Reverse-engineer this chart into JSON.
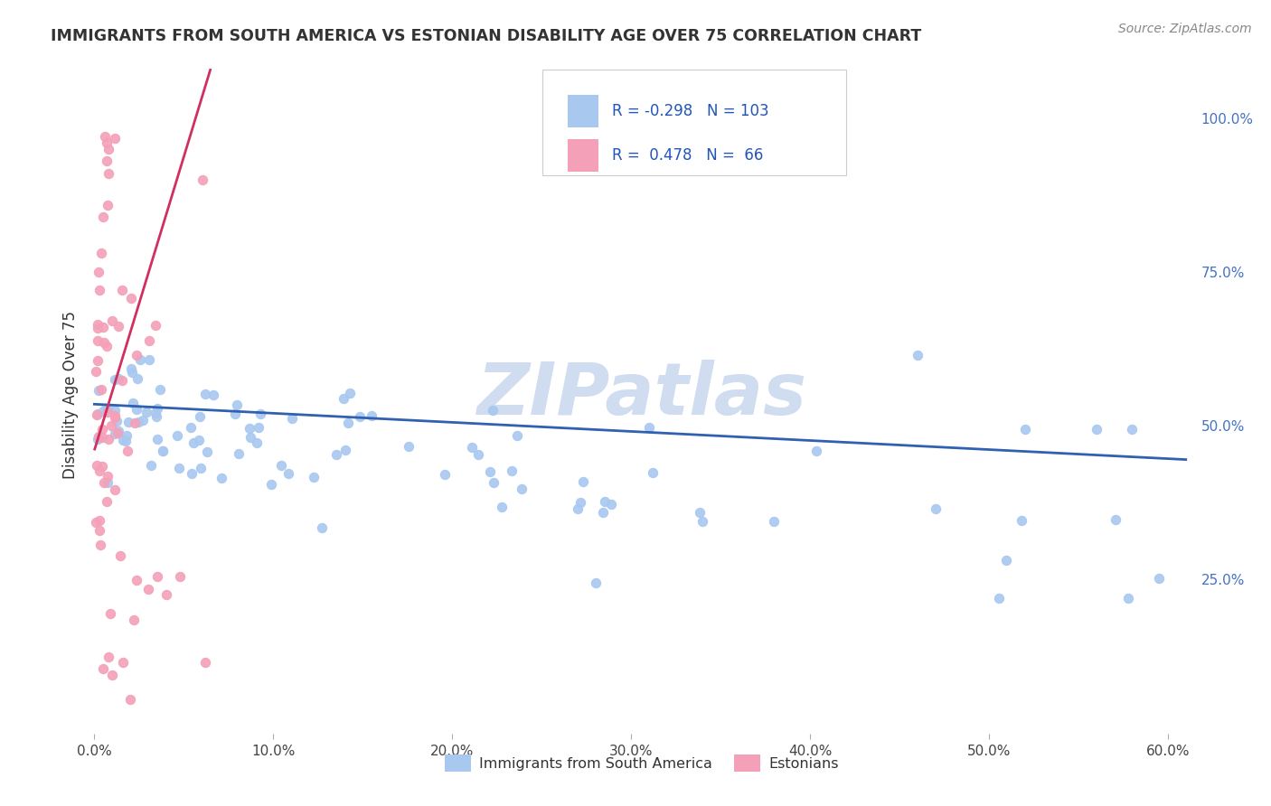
{
  "title": "IMMIGRANTS FROM SOUTH AMERICA VS ESTONIAN DISABILITY AGE OVER 75 CORRELATION CHART",
  "source": "Source: ZipAtlas.com",
  "ylabel": "Disability Age Over 75",
  "r_blue": -0.298,
  "n_blue": 103,
  "r_pink": 0.478,
  "n_pink": 66,
  "xlim": [
    -0.003,
    0.615
  ],
  "ylim": [
    0.0,
    1.1
  ],
  "xtick_vals": [
    0.0,
    0.1,
    0.2,
    0.3,
    0.4,
    0.5,
    0.6
  ],
  "xtick_labels": [
    "0.0%",
    "10.0%",
    "20.0%",
    "30.0%",
    "40.0%",
    "50.0%",
    "60.0%"
  ],
  "ytick_right_vals": [
    0.25,
    0.5,
    0.75,
    1.0
  ],
  "ytick_right_labels": [
    "25.0%",
    "50.0%",
    "75.0%",
    "100.0%"
  ],
  "blue_color": "#A8C8F0",
  "pink_color": "#F4A0B8",
  "blue_line_color": "#3060B0",
  "pink_line_color": "#D03060",
  "watermark_color": "#D0DCF0",
  "background_color": "#FFFFFF",
  "grid_color": "#C8C8C8",
  "blue_trend_x0": 0.0,
  "blue_trend_x1": 0.61,
  "blue_trend_y0": 0.535,
  "blue_trend_y1": 0.445,
  "pink_trend_x0": 0.0,
  "pink_trend_x1": 0.065,
  "pink_trend_y0": 0.46,
  "pink_trend_y1": 1.08
}
